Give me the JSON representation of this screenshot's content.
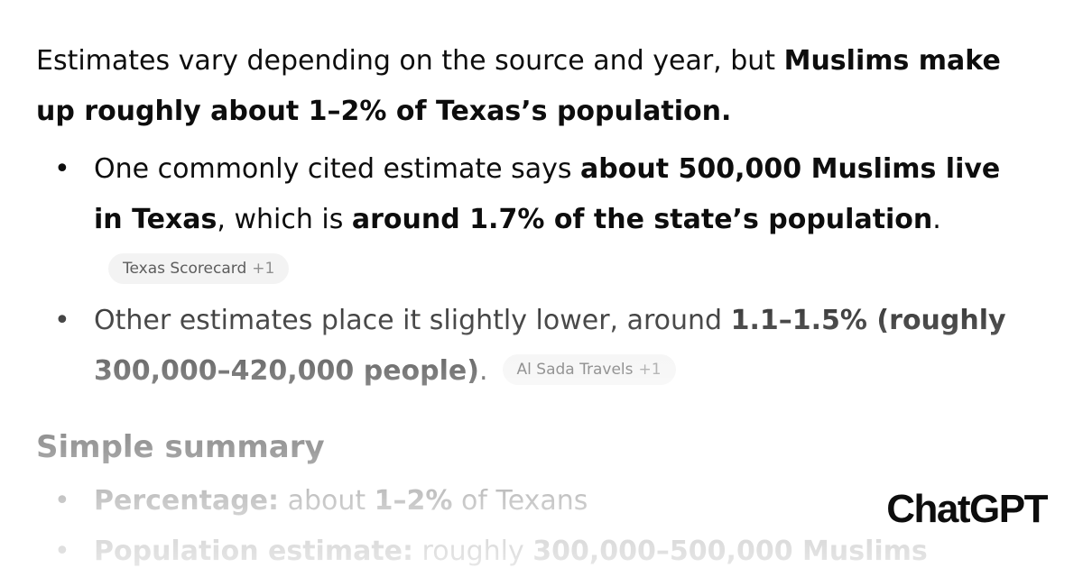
{
  "intro": [
    {
      "text": "Estimates vary depending on the source and year, but ",
      "bold": false
    },
    {
      "text": "Muslims make up roughly about 1–2% of Texas’s population.",
      "bold": true
    }
  ],
  "bullets": [
    {
      "runs": [
        {
          "text": "One commonly cited estimate says ",
          "bold": false
        },
        {
          "text": "about 500,000 Muslims live in Texas",
          "bold": true
        },
        {
          "text": ", which is ",
          "bold": false
        },
        {
          "text": "around 1.7% of the state’s population",
          "bold": true
        },
        {
          "text": ".",
          "bold": false
        }
      ],
      "citation": {
        "source": "Texas Scorecard",
        "more": "+1"
      }
    },
    {
      "runs": [
        {
          "text": "Other estimates place it slightly lower, around ",
          "bold": false
        },
        {
          "text": "1.1–1.5% (roughly 300,000–420,000 people)",
          "bold": true
        },
        {
          "text": ".",
          "bold": false
        }
      ],
      "citation": {
        "source": "Al Sada Travels",
        "more": "+1"
      }
    }
  ],
  "summary": {
    "heading": "Simple summary",
    "bullets": [
      {
        "runs": [
          {
            "text": "Percentage:",
            "bold": true
          },
          {
            "text": " about ",
            "bold": false
          },
          {
            "text": "1–2%",
            "bold": true
          },
          {
            "text": " of Texans",
            "bold": false
          }
        ]
      },
      {
        "runs": [
          {
            "text": "Population estimate:",
            "bold": true
          },
          {
            "text": " roughly ",
            "bold": false
          },
          {
            "text": "300,000–500,000 Muslims",
            "bold": true
          }
        ]
      }
    ]
  },
  "brand": "ChatGPT"
}
